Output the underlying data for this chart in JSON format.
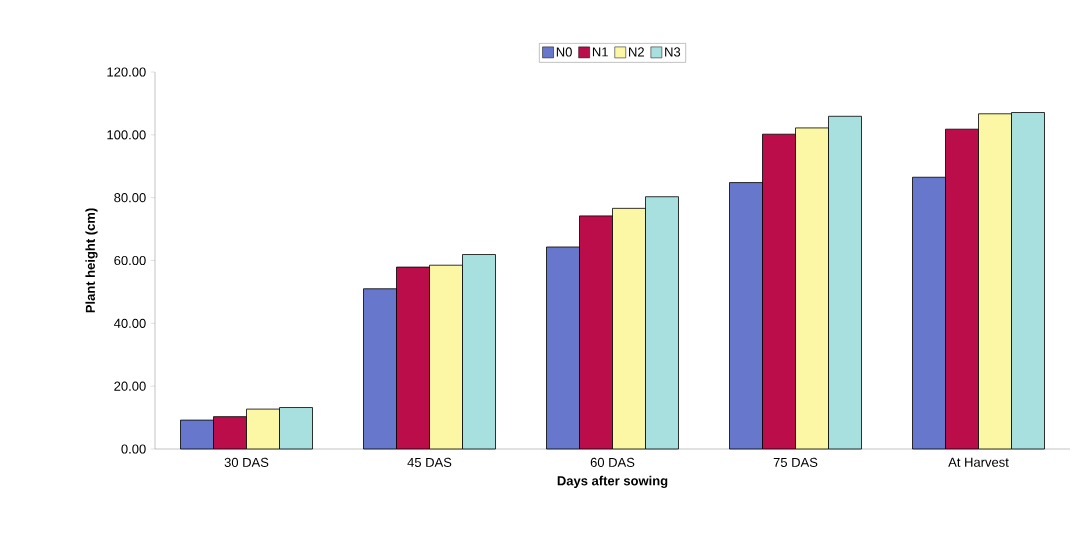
{
  "chart_data": {
    "type": "bar",
    "xlabel": "Days after sowing",
    "ylabel": "Plant height (cm)",
    "categories": [
      "30 DAS",
      "45 DAS",
      "60 DAS",
      "75 DAS",
      "At Harvest"
    ],
    "series": [
      {
        "name": "N0",
        "color": "#6677cc",
        "values": [
          9.2,
          51.0,
          64.3,
          84.8,
          86.5
        ]
      },
      {
        "name": "N1",
        "color": "#bb0d4a",
        "values": [
          10.3,
          57.9,
          74.2,
          100.2,
          101.8
        ]
      },
      {
        "name": "N2",
        "color": "#fbf7a4",
        "values": [
          12.7,
          58.5,
          76.6,
          102.2,
          106.7
        ]
      },
      {
        "name": "N3",
        "color": "#a8e0e0",
        "values": [
          13.2,
          61.9,
          80.3,
          105.9,
          107.1
        ]
      }
    ],
    "ylim": [
      0,
      120
    ],
    "yticks": [
      {
        "value": 0,
        "label": "0.00"
      },
      {
        "value": 20,
        "label": "20.00"
      },
      {
        "value": 40,
        "label": "40.00"
      },
      {
        "value": 60,
        "label": "60.00"
      },
      {
        "value": 80,
        "label": "80.00"
      },
      {
        "value": 100,
        "label": "100.00"
      },
      {
        "value": 120,
        "label": "120.00"
      }
    ],
    "grid": false,
    "legend": "top"
  }
}
